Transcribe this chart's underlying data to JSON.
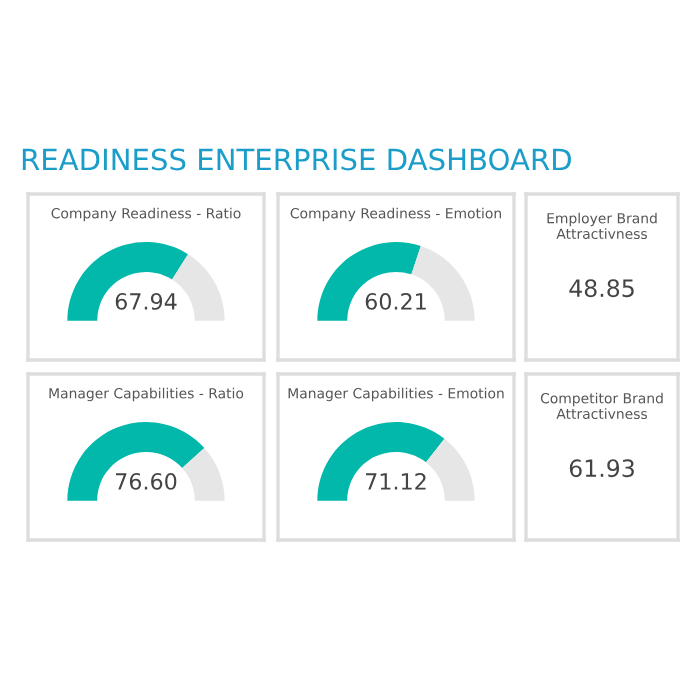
{
  "chart_data": [
    {
      "type": "other",
      "title": "READINESS ENTERPRISE DASHBOARD"
    },
    {
      "type": "donut",
      "title": "Company Readiness - Ratio",
      "categories": [
        null,
        null
      ],
      "values": [
        67.94,
        32.06
      ],
      "colors": [
        "#01b8aa",
        "#e6e6e6"
      ],
      "value_labels": [
        "67.94",
        null
      ]
    },
    {
      "type": "donut",
      "title": "Company Readiness - Emotion",
      "categories": [
        null,
        null
      ],
      "values": [
        60.21,
        39.79
      ],
      "colors": [
        "#01b8aa",
        "#e6e6e6"
      ],
      "value_labels": [
        "60.21",
        null
      ]
    },
    {
      "type": "other",
      "title": "Employer Brand Attractivness",
      "annotations": [
        "48.85"
      ]
    },
    {
      "type": "donut",
      "title": "Manager Capabilities - Ratio",
      "categories": [
        null,
        null
      ],
      "values": [
        76.6,
        23.4
      ],
      "colors": [
        "#01b8aa",
        "#e6e6e6"
      ],
      "value_labels": [
        "76.60",
        null
      ]
    },
    {
      "type": "donut",
      "title": "Manager Capabilities - Emotion",
      "categories": [
        null,
        null
      ],
      "values": [
        71.12,
        28.88
      ],
      "colors": [
        "#01b8aa",
        "#e6e6e6"
      ],
      "value_labels": [
        "71.12",
        null
      ]
    },
    {
      "type": "other",
      "title": "Competitor Brand Attractivness",
      "annotations": [
        "61.93"
      ]
    }
  ]
}
